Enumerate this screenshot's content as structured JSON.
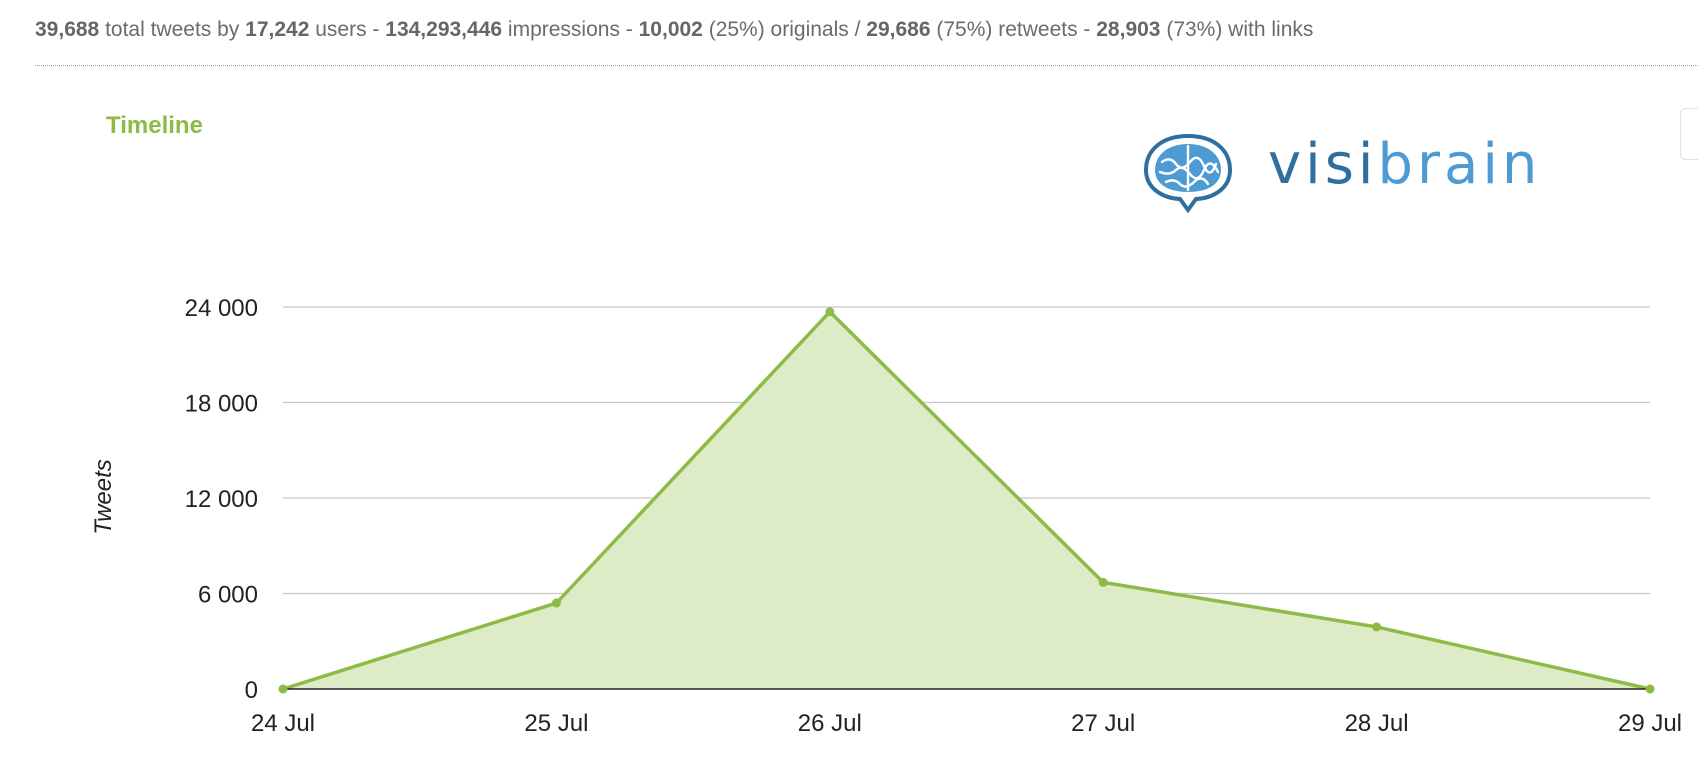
{
  "stats": {
    "total_tweets": "39,688",
    "total_tweets_suffix": "total tweets by",
    "users": "17,242",
    "users_suffix": "users -",
    "impressions": "134,293,446",
    "impressions_suffix": "impressions -",
    "originals": "10,002",
    "originals_suffix": "(25%) originals /",
    "retweets": "29,686",
    "retweets_suffix": "(75%) retweets -",
    "links": "28,903",
    "links_suffix": "(73%) with links"
  },
  "panel": {
    "title": "Timeline"
  },
  "logo": {
    "text_part1": "visi",
    "text_part2": "brain",
    "icon": "brain-speech-bubble-icon"
  },
  "colors": {
    "accent_green": "#8dbb45",
    "area_fill": "#ddecc6",
    "logo_dark_blue": "#2f6fa0",
    "logo_light_blue": "#4e9bd3"
  },
  "chart_data": {
    "type": "area",
    "title": "Timeline",
    "xlabel": "",
    "ylabel": "Tweets",
    "categories": [
      "24 Jul",
      "25 Jul",
      "26 Jul",
      "27 Jul",
      "28 Jul",
      "29 Jul"
    ],
    "values": [
      0,
      5400,
      23700,
      6700,
      3900,
      0
    ],
    "yticks": [
      0,
      6000,
      12000,
      18000,
      24000
    ],
    "ytick_labels": [
      "0",
      "6 000",
      "12 000",
      "18 000",
      "24 000"
    ],
    "ylim": [
      0,
      24000
    ],
    "grid": true,
    "legend": "none"
  }
}
